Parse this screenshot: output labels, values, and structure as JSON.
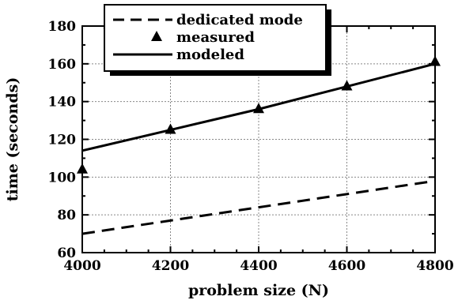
{
  "chart_data": {
    "type": "line",
    "xlabel": "problem size (N)",
    "ylabel": "time (seconds)",
    "xlim": [
      4000,
      4800
    ],
    "ylim": [
      60,
      180
    ],
    "xticks": [
      4000,
      4200,
      4400,
      4600,
      4800
    ],
    "yticks": [
      60,
      80,
      100,
      120,
      140,
      160,
      180
    ],
    "grid": true,
    "legend_position": "top-left",
    "series": [
      {
        "name": "dedicated mode",
        "style": "dashed",
        "x": [
          4000,
          4200,
          4400,
          4600,
          4800
        ],
        "y": [
          70,
          77,
          84,
          91,
          98
        ]
      },
      {
        "name": "measured",
        "style": "triangle-markers",
        "x": [
          4000,
          4200,
          4400,
          4600,
          4800
        ],
        "y": [
          104,
          125,
          136,
          148,
          161
        ]
      },
      {
        "name": "modeled",
        "style": "solid",
        "x": [
          4000,
          4200,
          4400,
          4600,
          4800
        ],
        "y": [
          114,
          125,
          136,
          148,
          160
        ]
      }
    ]
  }
}
